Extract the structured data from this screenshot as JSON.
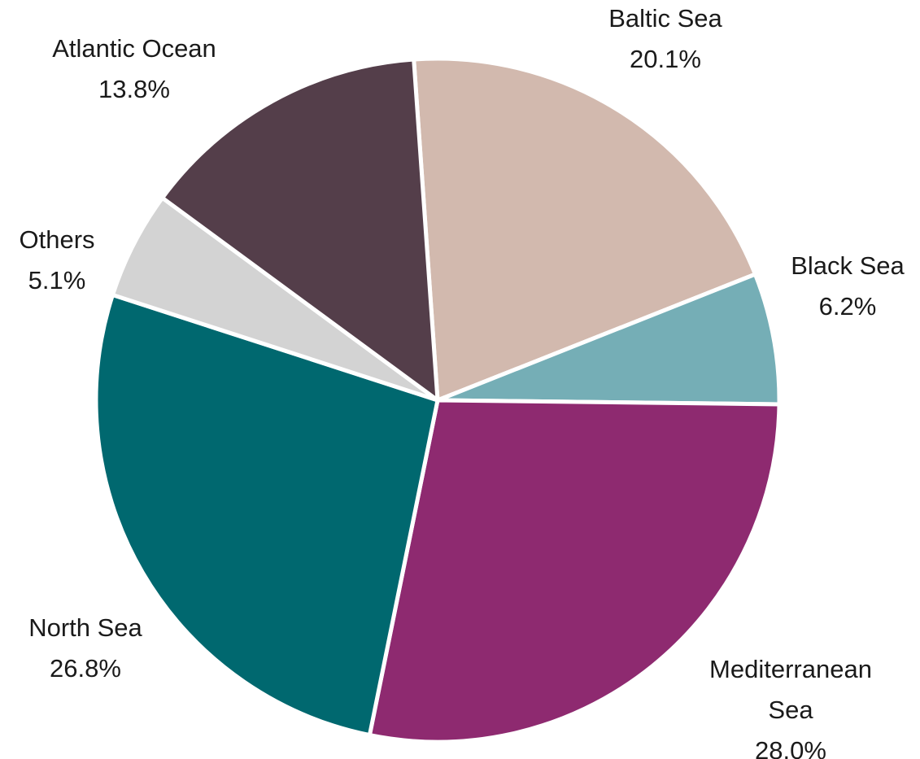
{
  "chart_data": {
    "type": "pie",
    "start": "12 o'clock",
    "direction": "clockwise",
    "slices": [
      {
        "name": "Baltic Sea",
        "value": 20.1,
        "label_lines": [
          "Baltic Sea"
        ],
        "value_label": "20.1%",
        "color": "#d2b9ae"
      },
      {
        "name": "Black Sea",
        "value": 6.2,
        "label_lines": [
          "Black Sea"
        ],
        "value_label": "6.2%",
        "color": "#75aeb6"
      },
      {
        "name": "Mediterranean Sea",
        "value": 28.0,
        "label_lines": [
          "Mediterranean",
          "Sea"
        ],
        "value_label": "28.0%",
        "color": "#8e2a70"
      },
      {
        "name": "North Sea",
        "value": 26.8,
        "label_lines": [
          "North Sea"
        ],
        "value_label": "26.8%",
        "color": "#00686f"
      },
      {
        "name": "Others",
        "value": 5.1,
        "label_lines": [
          "Others"
        ],
        "value_label": "5.1%",
        "color": "#d3d3d3"
      },
      {
        "name": "Atlantic Ocean",
        "value": 13.8,
        "label_lines": [
          "Atlantic Ocean"
        ],
        "value_label": "13.8%",
        "color": "#543e4a"
      }
    ]
  }
}
